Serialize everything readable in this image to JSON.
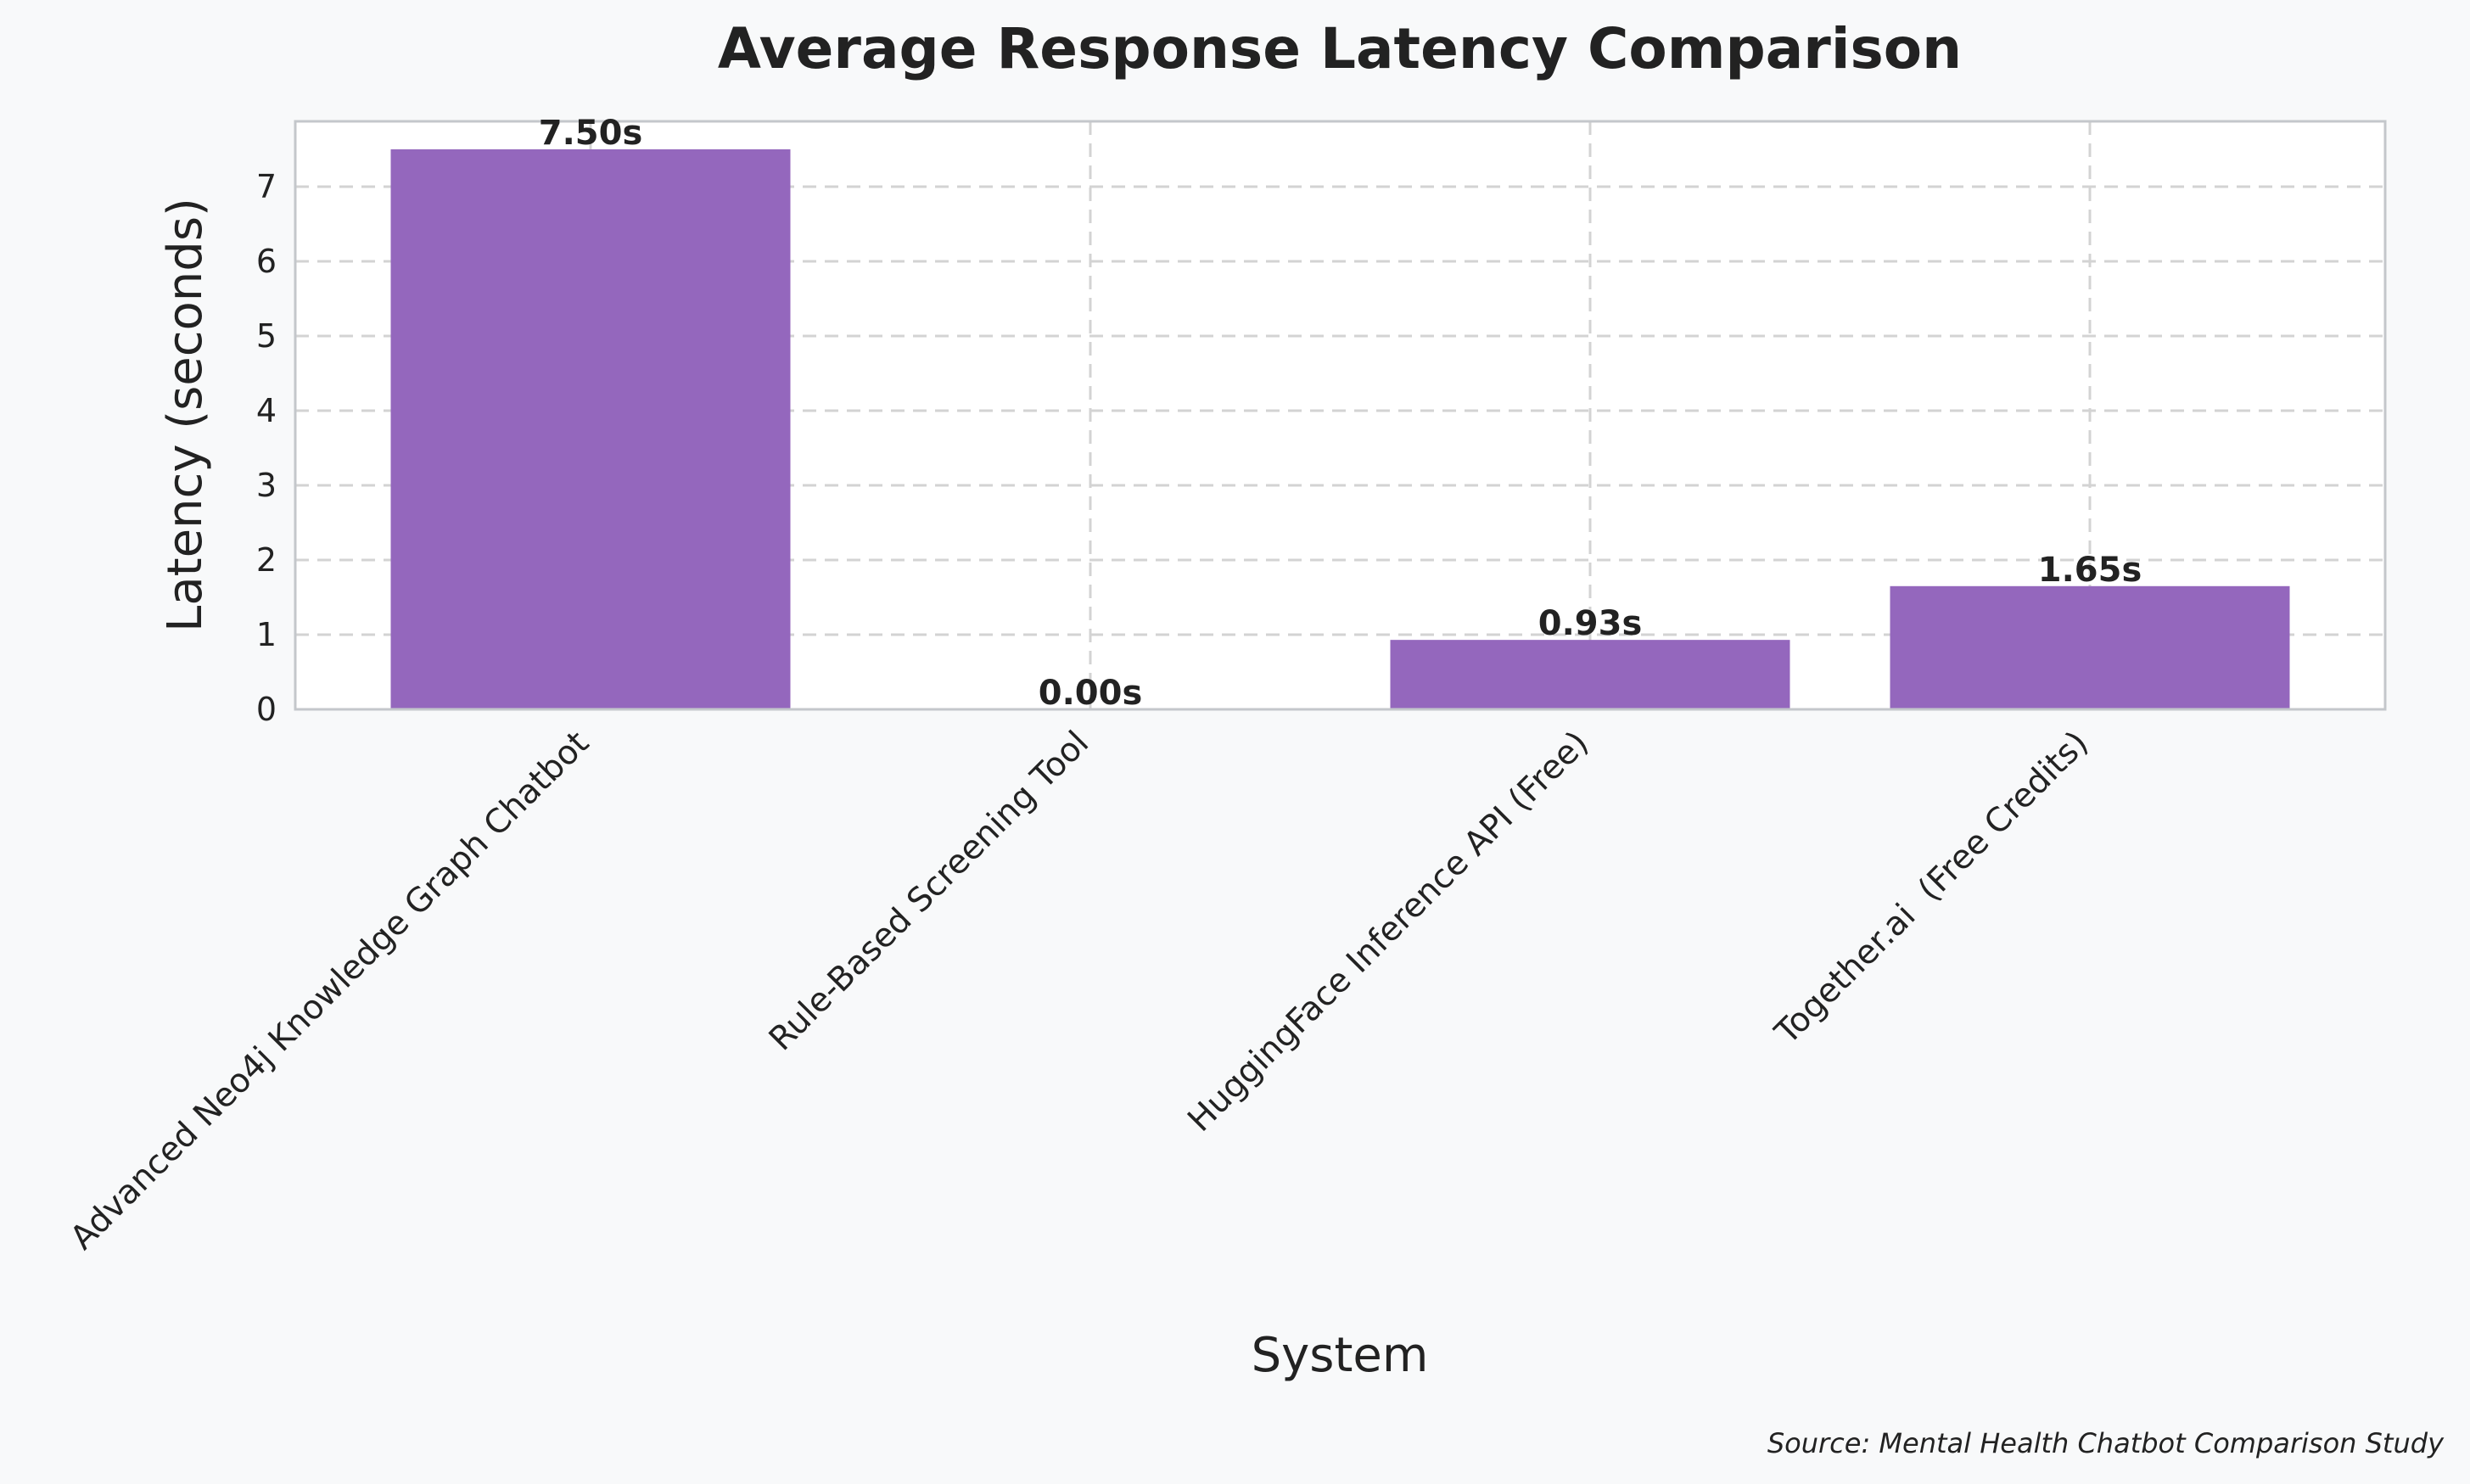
{
  "chart_data": {
    "type": "bar",
    "title": "Average Response Latency Comparison",
    "xlabel": "System",
    "ylabel": "Latency (seconds)",
    "categories": [
      "Advanced Neo4j Knowledge Graph Chatbot",
      "Rule-Based Screening Tool",
      "HuggingFace Inference API (Free)",
      "Together.ai  (Free Credits)"
    ],
    "values": [
      7.5,
      0.0,
      0.93,
      1.65
    ],
    "value_labels": [
      "7.50s",
      "0.00s",
      "0.93s",
      "1.65s"
    ],
    "yticks": [
      0,
      1,
      2,
      3,
      4,
      5,
      6,
      7
    ],
    "ylim": [
      0,
      7.875
    ],
    "grid": true,
    "bar_color": "#9467bd",
    "source": "Source: Mental Health Chatbot Comparison Study"
  }
}
